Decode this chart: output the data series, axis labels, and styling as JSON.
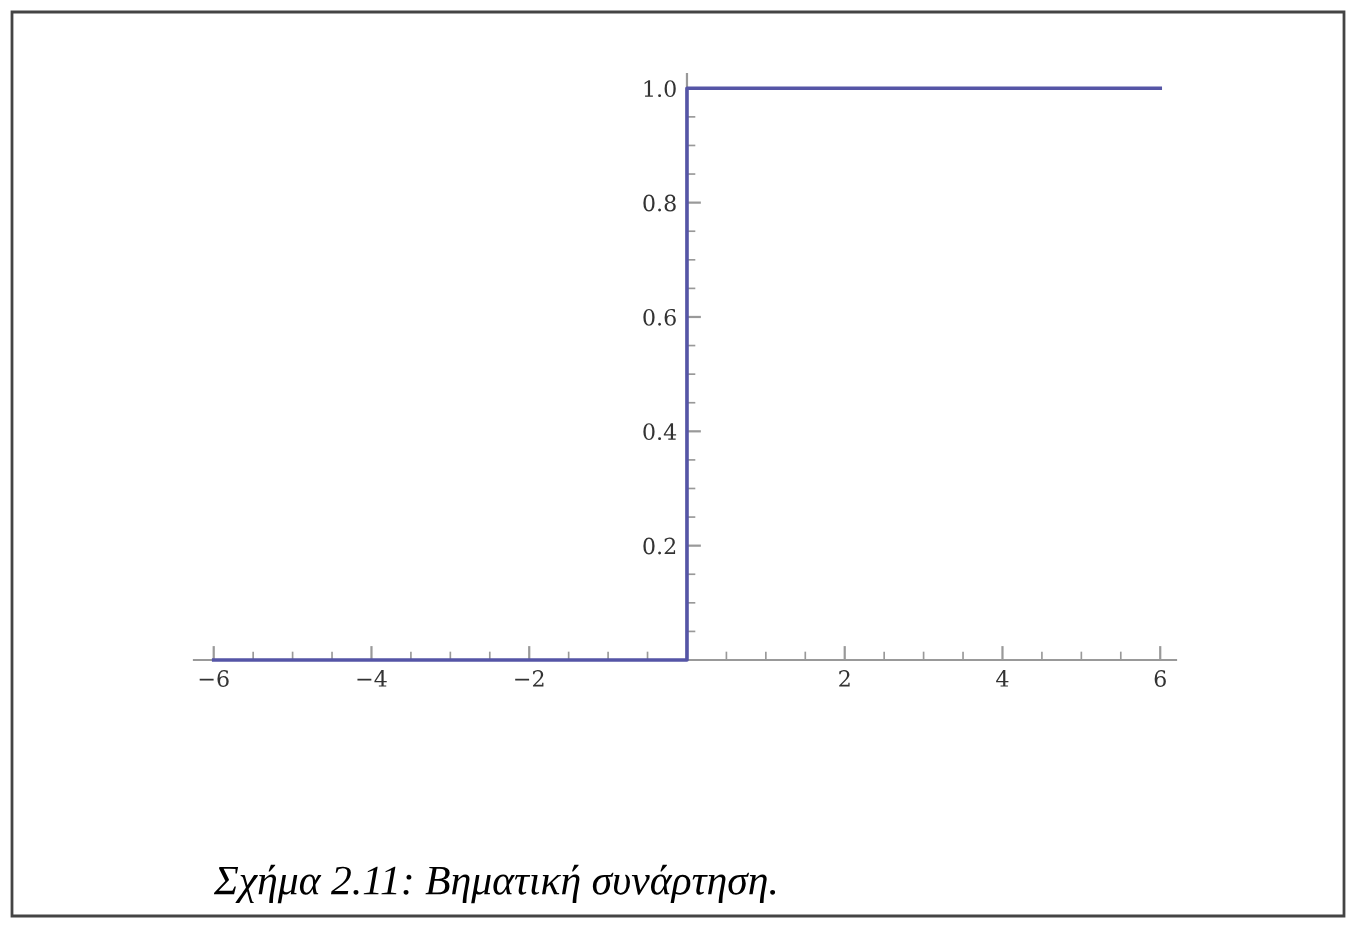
{
  "chart_data": {
    "type": "step",
    "x": [
      -6,
      0,
      6
    ],
    "series": [
      {
        "color": "#5555a6",
        "values": [
          0,
          1,
          1
        ]
      }
    ],
    "xlim": [
      -6.25,
      6.2
    ],
    "ylim": [
      0,
      1.025
    ],
    "xticks": [
      {
        "value": -6,
        "label": "−6"
      },
      {
        "value": -4,
        "label": "−4"
      },
      {
        "value": -2,
        "label": "−2"
      },
      2,
      4,
      6
    ],
    "yticks": [
      0.2,
      0.4,
      0.6,
      0.8,
      {
        "value": 1.0,
        "label": "1.0"
      }
    ],
    "annotations": [
      "Σχήμα 2.11: Βηματική συνάρτηση."
    ]
  }
}
